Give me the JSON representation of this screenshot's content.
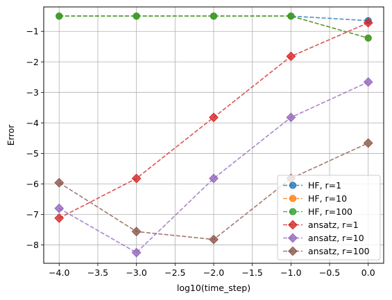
{
  "chart_data": {
    "type": "line",
    "xlabel": "log10(time_step)",
    "ylabel": "Error",
    "xlim": [
      -4.2,
      0.2
    ],
    "ylim": [
      -8.6,
      -0.2
    ],
    "xticks": [
      -4.0,
      -3.5,
      -3.0,
      -2.5,
      -2.0,
      -1.5,
      -1.0,
      -0.5,
      0.0
    ],
    "xtick_labels": [
      "−4.0",
      "−3.5",
      "−3.0",
      "−2.5",
      "−2.0",
      "−1.5",
      "−1.0",
      "−0.5",
      "0.0"
    ],
    "yticks": [
      -8,
      -7,
      -6,
      -5,
      -4,
      -3,
      -2,
      -1
    ],
    "ytick_labels": [
      "−8",
      "−7",
      "−6",
      "−5",
      "−4",
      "−3",
      "−2",
      "−1"
    ],
    "grid": true,
    "legend_position": "lower-right",
    "x": [
      -4.0,
      -3.0,
      -2.0,
      -1.0,
      0.0
    ],
    "series": [
      {
        "name": "HF, r=1",
        "marker": "circle",
        "color": "#1f77b4",
        "values": [
          -0.5,
          -0.5,
          -0.5,
          -0.5,
          -0.65
        ]
      },
      {
        "name": "HF, r=10",
        "marker": "circle",
        "color": "#ff7f0e",
        "values": [
          -0.5,
          -0.5,
          -0.5,
          -0.5,
          -1.22
        ]
      },
      {
        "name": "HF, r=100",
        "marker": "circle",
        "color": "#2ca02c",
        "values": [
          -0.5,
          -0.5,
          -0.5,
          -0.5,
          -1.22
        ]
      },
      {
        "name": "ansatz, r=1",
        "marker": "diamond",
        "color": "#d62728",
        "values": [
          -7.12,
          -5.82,
          -3.82,
          -1.82,
          -0.72
        ]
      },
      {
        "name": "ansatz, r=10",
        "marker": "diamond",
        "color": "#9467bd",
        "values": [
          -6.8,
          -8.25,
          -5.82,
          -3.82,
          -2.66
        ]
      },
      {
        "name": "ansatz, r=100",
        "marker": "diamond",
        "color": "#8c564b",
        "values": [
          -5.96,
          -7.56,
          -7.82,
          -5.82,
          -4.66
        ]
      }
    ]
  }
}
